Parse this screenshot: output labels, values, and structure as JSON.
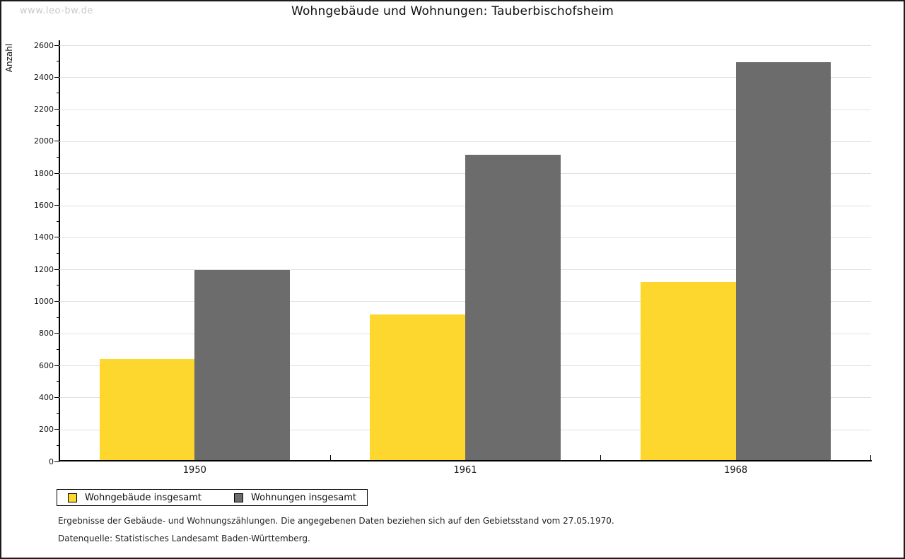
{
  "watermark": "www.leo-bw.de",
  "chart_data": {
    "type": "bar",
    "title": "Wohngebäude und Wohnungen: Tauberbischofsheim",
    "xlabel": "",
    "ylabel": "Anzahl",
    "categories": [
      "1950",
      "1961",
      "1968"
    ],
    "series": [
      {
        "name": "Wohngebäude insgesamt",
        "color": "#FDD62E",
        "values": [
          642,
          918,
          1122
        ]
      },
      {
        "name": "Wohnungen insgesamt",
        "color": "#6C6C6C",
        "values": [
          1196,
          1914,
          2494
        ]
      }
    ],
    "ylim": [
      0,
      2600
    ],
    "ytick_major": 200,
    "ytick_minor": 100,
    "grid": "horizontal-major-only",
    "legend_position": "bottom-left",
    "gridline_color": "#e1e1e1",
    "axis_color": "#000000"
  },
  "footnotes": [
    "Ergebnisse der Gebäude- und Wohnungszählungen. Die angegebenen Daten beziehen sich auf den Gebietsstand vom 27.05.1970.",
    "Datenquelle: Statistisches Landesamt Baden-Württemberg."
  ]
}
